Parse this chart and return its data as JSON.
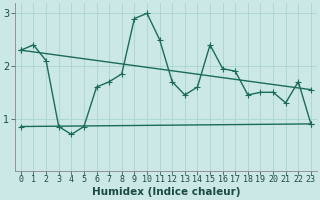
{
  "xlabel": "Humidex (Indice chaleur)",
  "x": [
    0,
    1,
    2,
    3,
    4,
    5,
    6,
    7,
    8,
    9,
    10,
    11,
    12,
    13,
    14,
    15,
    16,
    17,
    18,
    19,
    20,
    21,
    22,
    23
  ],
  "line1": [
    2.3,
    2.4,
    2.1,
    0.85,
    0.7,
    0.85,
    1.6,
    1.7,
    1.85,
    2.9,
    3.0,
    2.5,
    1.7,
    1.45,
    1.6,
    2.4,
    1.95,
    1.9,
    1.45,
    1.5,
    1.5,
    1.3,
    1.7,
    0.9
  ],
  "line2_x": [
    0,
    23
  ],
  "line2_y": [
    2.3,
    1.55
  ],
  "line3_x": [
    0,
    23
  ],
  "line3_y": [
    0.85,
    0.9
  ],
  "ylim": [
    0,
    3.2
  ],
  "xlim": [
    -0.5,
    23.5
  ],
  "yticks": [
    1,
    2,
    3
  ],
  "color": "#1a6b5a",
  "bg_color": "#cce8e6",
  "grid_color": "#aad4d0",
  "linewidth": 1.0,
  "markersize": 3,
  "tick_fontsize": 6.0,
  "xlabel_fontsize": 7.5
}
